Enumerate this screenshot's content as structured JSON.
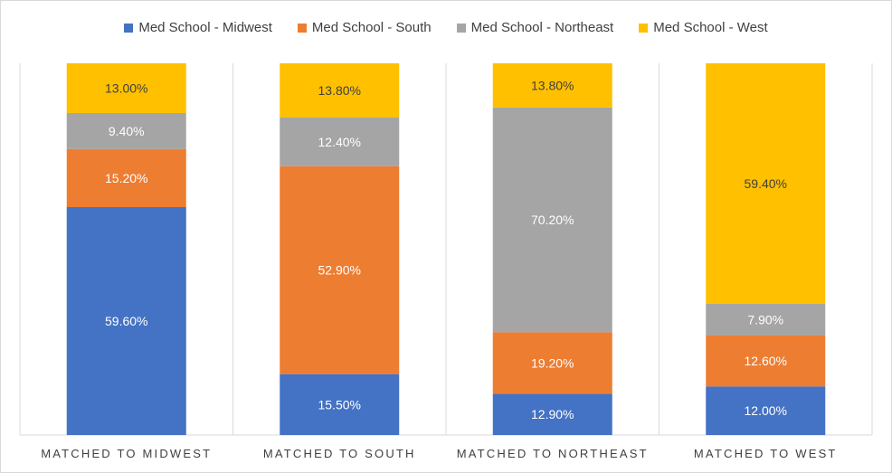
{
  "chart_data": {
    "type": "bar",
    "stacked": "percent",
    "categories": [
      "MATCHED TO MIDWEST",
      "MATCHED TO SOUTH",
      "MATCHED TO NORTHEAST",
      "MATCHED TO WEST"
    ],
    "series": [
      {
        "name": "Med School - Midwest",
        "color": "#4472C4",
        "values": [
          59.6,
          15.5,
          12.9,
          12.0
        ],
        "labels": [
          "59.60%",
          "15.50%",
          "12.90%",
          "12.00%"
        ]
      },
      {
        "name": "Med School - South",
        "color": "#ED7D31",
        "values": [
          15.2,
          52.9,
          19.2,
          12.6
        ],
        "labels": [
          "15.20%",
          "52.90%",
          "19.20%",
          "12.60%"
        ]
      },
      {
        "name": "Med School - Northeast",
        "color": "#A5A5A5",
        "values": [
          9.4,
          12.4,
          70.2,
          7.9
        ],
        "labels": [
          "9.40%",
          "12.40%",
          "70.20%",
          "7.90%"
        ]
      },
      {
        "name": "Med School - West",
        "color": "#FFC000",
        "values": [
          13.0,
          13.8,
          13.8,
          59.4
        ],
        "labels": [
          "13.00%",
          "13.80%",
          "13.80%",
          "59.40%"
        ]
      }
    ],
    "legend_position": "top",
    "grid": "vertical category separators"
  }
}
